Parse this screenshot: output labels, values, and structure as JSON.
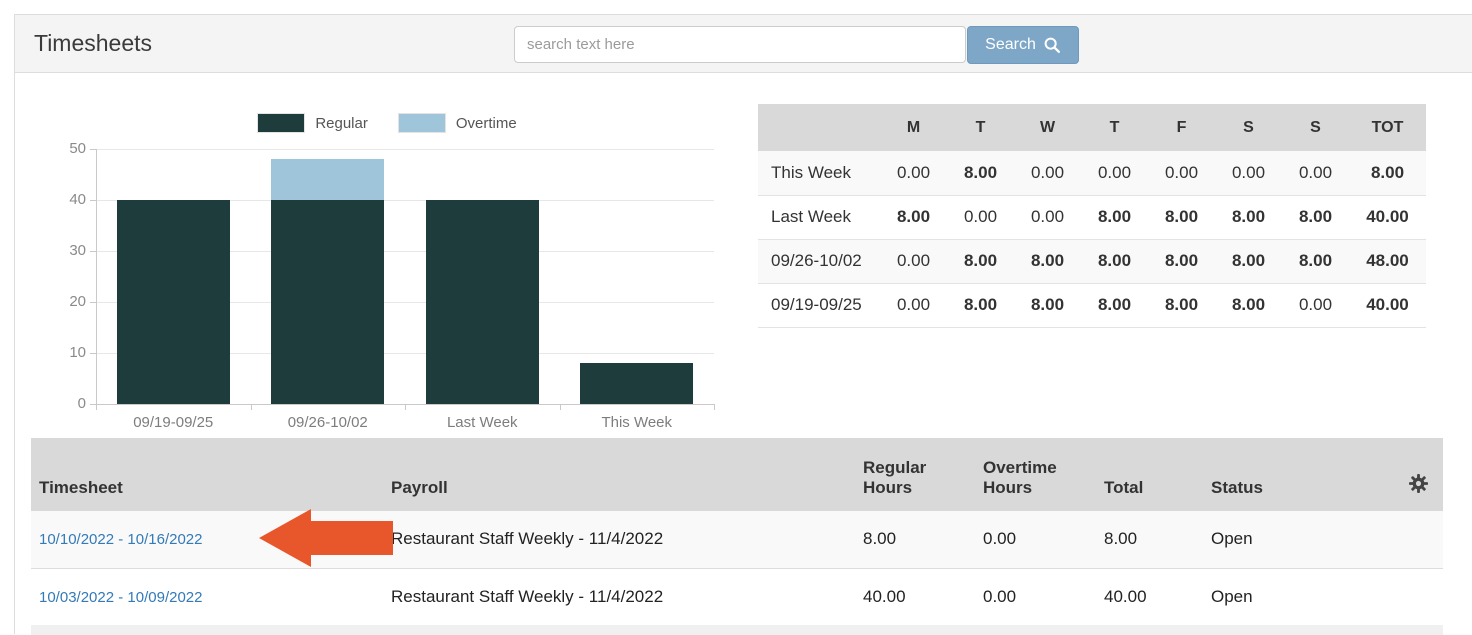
{
  "header": {
    "title": "Timesheets",
    "search_placeholder": "search text here",
    "search_button": "Search"
  },
  "chart_data": {
    "type": "bar",
    "stacked": true,
    "title": "",
    "xlabel": "",
    "ylabel": "",
    "categories": [
      "09/19-09/25",
      "09/26-10/02",
      "Last Week",
      "This Week"
    ],
    "series": [
      {
        "name": "Regular",
        "color": "#1d3c3b",
        "values": [
          40,
          40,
          40,
          8
        ]
      },
      {
        "name": "Overtime",
        "color": "#9fc5da",
        "values": [
          0,
          8,
          0,
          0
        ]
      }
    ],
    "ylim": [
      0,
      50
    ],
    "yticks": [
      0,
      10,
      20,
      30,
      40,
      50
    ],
    "grid": true,
    "legend_position": "top"
  },
  "week_summary_table": {
    "day_columns": [
      "M",
      "T",
      "W",
      "T",
      "F",
      "S",
      "S",
      "TOT"
    ],
    "rows": [
      {
        "label": "This Week",
        "values": [
          "0.00",
          "8.00",
          "0.00",
          "0.00",
          "0.00",
          "0.00",
          "0.00",
          "8.00"
        ]
      },
      {
        "label": "Last Week",
        "values": [
          "8.00",
          "0.00",
          "0.00",
          "8.00",
          "8.00",
          "8.00",
          "8.00",
          "40.00"
        ]
      },
      {
        "label": "09/26-10/02",
        "values": [
          "0.00",
          "8.00",
          "8.00",
          "8.00",
          "8.00",
          "8.00",
          "8.00",
          "48.00"
        ]
      },
      {
        "label": "09/19-09/25",
        "values": [
          "0.00",
          "8.00",
          "8.00",
          "8.00",
          "8.00",
          "8.00",
          "0.00",
          "40.00"
        ]
      }
    ]
  },
  "timesheet_table": {
    "headers": {
      "timesheet": "Timesheet",
      "payroll": "Payroll",
      "regular_hours": "Regular Hours",
      "overtime_hours": "Overtime Hours",
      "total": "Total",
      "status": "Status",
      "settings_icon": "gear-icon"
    },
    "rows": [
      {
        "timesheet_link": "10/10/2022 - 10/16/2022",
        "payroll": "Restaurant Staff Weekly - 11/4/2022",
        "regular_hours": "8.00",
        "overtime_hours": "0.00",
        "total": "8.00",
        "status": "Open"
      },
      {
        "timesheet_link": "10/03/2022 - 10/09/2022",
        "payroll": "Restaurant Staff Weekly - 11/4/2022",
        "regular_hours": "40.00",
        "overtime_hours": "0.00",
        "total": "40.00",
        "status": "Open"
      }
    ]
  },
  "annotation": {
    "type": "left-pointing-arrow",
    "color": "#e8562b",
    "target": "10/10/2022 - 10/16/2022"
  },
  "colors": {
    "search_button_bg": "#7da6c7",
    "table_header_bg": "#d9d9d9",
    "link": "#337ab7",
    "regular_bar": "#1d3c3b",
    "overtime_bar": "#9fc5da"
  }
}
